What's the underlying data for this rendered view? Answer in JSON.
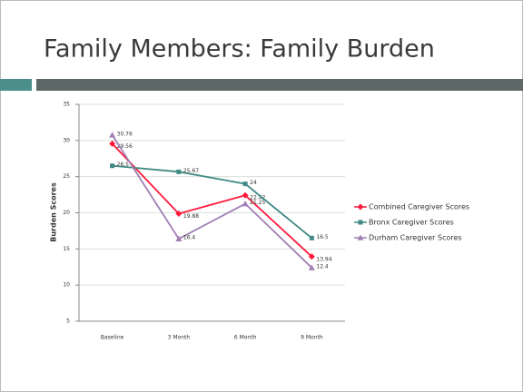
{
  "chart_data": {
    "type": "line",
    "title": "Family Members: Family Burden",
    "y_label": "Burden Scores",
    "categories": [
      "Baseline",
      "3 Month",
      "6 Month",
      "9 Month"
    ],
    "series": [
      {
        "name": "Combined Caregiver Scores",
        "color": "#ff1a3c",
        "marker": "diamond",
        "values": [
          29.56,
          19.88,
          22.42,
          13.94
        ]
      },
      {
        "name": "Bronx Caregiver Scores",
        "color": "#3f8a85",
        "marker": "square",
        "values": [
          26.5,
          25.67,
          24,
          16.5
        ]
      },
      {
        "name": "Durham Caregiver Scores",
        "color": "#a07fb4",
        "marker": "triangle",
        "values": [
          30.76,
          16.4,
          21.25,
          12.4
        ]
      }
    ],
    "ylim": [
      5,
      35
    ],
    "yticks": [
      5,
      10,
      15,
      20,
      25,
      30,
      35
    ],
    "grid": true,
    "legend": "right"
  }
}
